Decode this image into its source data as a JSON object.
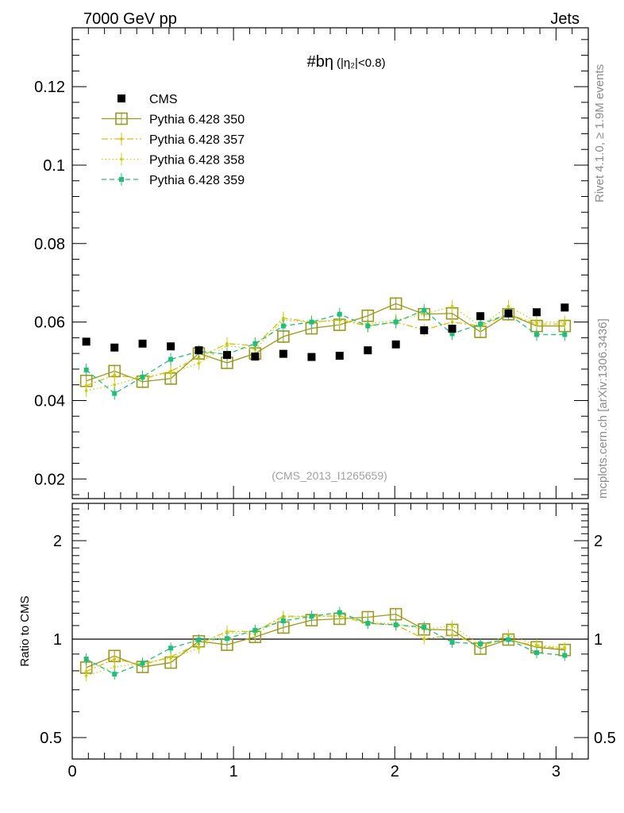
{
  "header": {
    "left_title": "7000 GeV pp",
    "right_title": "Jets"
  },
  "side_labels": {
    "rivet": "Rivet 4.1.0, ≥ 1.9M events",
    "mcplots": "mcplots.cern.ch [arXiv:1306.3436]"
  },
  "chart_data": {
    "type": "scatter",
    "title": "#bη",
    "title_condition": "(|η₂|<0.8)",
    "watermark": "(CMS_2013_I1265659)",
    "xlabel": "",
    "ylabel": "",
    "xlim": [
      0,
      3.2
    ],
    "ylim": [
      0.015,
      0.135
    ],
    "x_ticks": [
      "0",
      "1",
      "2",
      "3"
    ],
    "y_ticks": [
      "0.02",
      "0.04",
      "0.06",
      "0.08",
      "0.1",
      "0.12"
    ],
    "x": [
      0.087,
      0.262,
      0.436,
      0.611,
      0.785,
      0.96,
      1.134,
      1.309,
      1.484,
      1.658,
      1.833,
      2.007,
      2.182,
      2.356,
      2.531,
      2.705,
      2.88,
      3.054
    ],
    "series": [
      {
        "name": "CMS",
        "color": "#000000",
        "marker": "filled-square",
        "line": "none",
        "values": [
          0.055,
          0.0535,
          0.0545,
          0.0538,
          0.0528,
          0.0516,
          0.0512,
          0.0519,
          0.0511,
          0.0514,
          0.0528,
          0.0543,
          0.0579,
          0.0583,
          0.0615,
          0.0622,
          0.0625,
          0.0637
        ]
      },
      {
        "name": "Pythia 6.428 350",
        "color": "#9a9a1a",
        "marker": "open-square",
        "line": "solid",
        "values": [
          0.045,
          0.0475,
          0.0448,
          0.0456,
          0.052,
          0.0496,
          0.052,
          0.0563,
          0.0584,
          0.0593,
          0.0616,
          0.0647,
          0.062,
          0.0622,
          0.0575,
          0.062,
          0.059,
          0.059
        ]
      },
      {
        "name": "Pythia 6.428 357",
        "color": "#d9c000",
        "marker": "small-dot",
        "line": "dashdot",
        "values": [
          0.0438,
          0.0465,
          0.0455,
          0.0475,
          0.051,
          0.0545,
          0.054,
          0.061,
          0.06,
          0.0605,
          0.059,
          0.06,
          0.058,
          0.06,
          0.059,
          0.062,
          0.0595,
          0.0595
        ]
      },
      {
        "name": "Pythia 6.428 358",
        "color": "#c8d400",
        "marker": "small-dot",
        "line": "dotted",
        "values": [
          0.0425,
          0.044,
          0.046,
          0.047,
          0.0495,
          0.054,
          0.053,
          0.0605,
          0.06,
          0.0605,
          0.0595,
          0.0605,
          0.062,
          0.064,
          0.059,
          0.064,
          0.06,
          0.06
        ]
      },
      {
        "name": "Pythia 6.428 359",
        "color": "#1dbf7a",
        "marker": "small-square",
        "line": "dashed",
        "values": [
          0.0478,
          0.0418,
          0.046,
          0.0505,
          0.0525,
          0.0518,
          0.0545,
          0.059,
          0.06,
          0.062,
          0.059,
          0.06,
          0.063,
          0.057,
          0.0595,
          0.062,
          0.0568,
          0.0568
        ]
      }
    ],
    "ratio_panel": {
      "ylabel": "Ratio to CMS",
      "ylim": [
        0.43,
        2.6
      ],
      "y_ticks": [
        "0.5",
        "1",
        "2"
      ],
      "reference_value": 1
    }
  }
}
